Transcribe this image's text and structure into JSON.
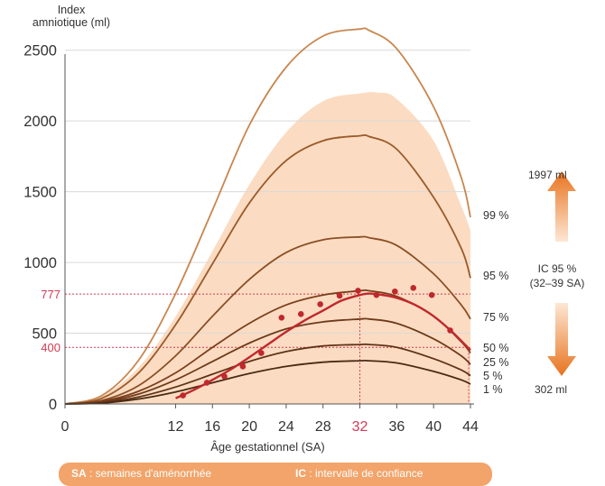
{
  "chart_data": {
    "type": "line",
    "ylabel": [
      "Index",
      "amniotique (ml)"
    ],
    "xlabel": "Âge gestationnel (SA)",
    "xlim": [
      0,
      44
    ],
    "ylim": [
      0,
      2600
    ],
    "x_ticks": [
      "0",
      "12",
      "16",
      "20",
      "24",
      "28",
      "32",
      "36",
      "40",
      "44"
    ],
    "y_ticks": [
      "0",
      "500",
      "1000",
      "1500",
      "2000",
      "2500"
    ],
    "x_highlight": "32",
    "y_highlights": [
      "777",
      "400"
    ],
    "grid": "horizontal",
    "confidence_band": {
      "x": [
        0,
        4,
        8,
        12,
        16,
        20,
        24,
        28,
        32,
        34,
        36,
        40,
        43,
        44
      ],
      "upper": [
        0,
        60,
        260,
        620,
        1080,
        1550,
        1920,
        2140,
        2195,
        2200,
        2155,
        1860,
        1400,
        1230
      ],
      "lower": [
        0,
        0,
        0,
        0,
        0,
        0,
        0,
        0,
        0,
        0,
        0,
        0,
        0,
        0
      ]
    },
    "series": [
      {
        "name": "99 %",
        "x": [
          0,
          4,
          8,
          12,
          16,
          20,
          24,
          28,
          32,
          33,
          36,
          40,
          43,
          44
        ],
        "y": [
          0,
          60,
          310,
          780,
          1370,
          1970,
          2380,
          2600,
          2650,
          2640,
          2510,
          2100,
          1600,
          1320
        ]
      },
      {
        "name": "95 %",
        "x": [
          0,
          4,
          8,
          12,
          16,
          20,
          24,
          28,
          32,
          33,
          36,
          40,
          43,
          44
        ],
        "y": [
          0,
          40,
          220,
          560,
          990,
          1420,
          1720,
          1860,
          1895,
          1890,
          1800,
          1460,
          1100,
          890
        ]
      },
      {
        "name": "75 %",
        "x": [
          0,
          4,
          8,
          12,
          16,
          20,
          24,
          28,
          32,
          33,
          36,
          40,
          43,
          44
        ],
        "y": [
          0,
          25,
          130,
          340,
          620,
          880,
          1070,
          1160,
          1180,
          1175,
          1120,
          920,
          700,
          600
        ]
      },
      {
        "name": "50 %",
        "x": [
          0,
          4,
          8,
          12,
          16,
          20,
          24,
          28,
          32,
          33,
          36,
          40,
          43,
          44
        ],
        "y": [
          0,
          18,
          90,
          220,
          400,
          570,
          700,
          770,
          800,
          800,
          760,
          620,
          440,
          360
        ]
      },
      {
        "name": "25 %",
        "x": [
          0,
          4,
          8,
          12,
          16,
          20,
          24,
          28,
          32,
          33,
          36,
          40,
          43,
          44
        ],
        "y": [
          0,
          13,
          70,
          170,
          300,
          430,
          530,
          580,
          600,
          600,
          570,
          460,
          340,
          280
        ]
      },
      {
        "name": "5 %",
        "x": [
          0,
          4,
          8,
          12,
          16,
          20,
          24,
          28,
          32,
          33,
          36,
          40,
          43,
          44
        ],
        "y": [
          0,
          9,
          50,
          120,
          210,
          300,
          370,
          410,
          420,
          420,
          400,
          320,
          240,
          200
        ]
      },
      {
        "name": "1 %",
        "x": [
          0,
          4,
          8,
          12,
          16,
          20,
          24,
          28,
          32,
          33,
          36,
          40,
          43,
          44
        ],
        "y": [
          0,
          6,
          35,
          85,
          150,
          215,
          265,
          295,
          305,
          305,
          290,
          230,
          170,
          140
        ]
      }
    ],
    "observed_points": {
      "x": [
        12.8,
        15.4,
        17.3,
        19.3,
        21.3,
        23.5,
        25.6,
        27.7,
        29.8,
        31.8,
        33.8,
        35.8,
        37.8,
        39.8,
        41.8
      ],
      "y": [
        60,
        150,
        195,
        265,
        360,
        610,
        635,
        705,
        765,
        800,
        770,
        795,
        820,
        770,
        520
      ]
    },
    "observed_fit": {
      "x": [
        12,
        14,
        16,
        18,
        20,
        22,
        24,
        26,
        28,
        30,
        32,
        33,
        34,
        36,
        38,
        40,
        42,
        44
      ],
      "y": [
        40,
        100,
        170,
        245,
        330,
        420,
        510,
        590,
        660,
        730,
        770,
        780,
        775,
        750,
        700,
        620,
        510,
        380
      ]
    },
    "annotations": {
      "arrow_top": "1997 ml",
      "ic_lines": [
        "IC 95 %",
        "(32–39 SA)"
      ],
      "arrow_bottom": "302 ml"
    }
  },
  "footer": {
    "sa_abbr": "SA",
    "sa_text": " : semaines d'aménorrhée",
    "ic_abbr": "IC",
    "ic_text": " : intervalle de confiance"
  }
}
